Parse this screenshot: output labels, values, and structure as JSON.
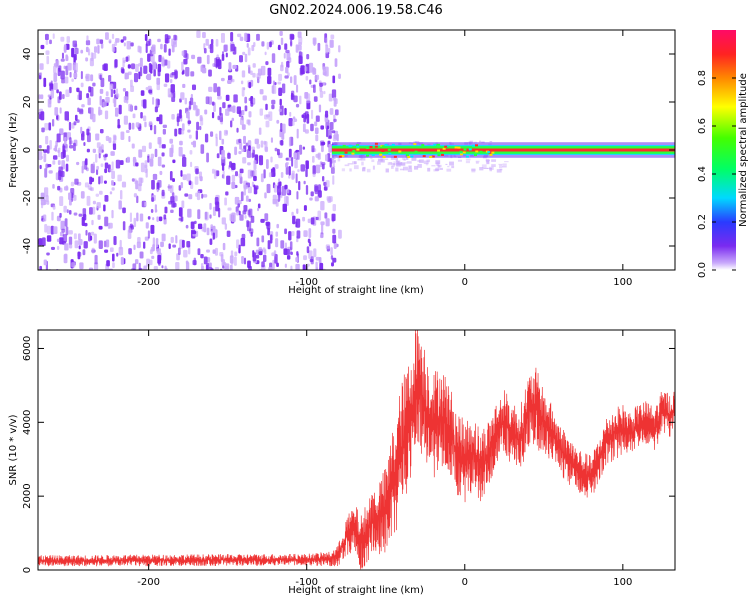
{
  "title": "GN02.2024.006.19.58.C46",
  "colors": {
    "spectrogram_noise": "#7a2bf0",
    "spectrogram_light": "#c9a8fb",
    "snr_line": "#ee3333",
    "ridge": "#ff2a2a"
  },
  "colorbar": {
    "label": "Normalized spectral amplitude",
    "ticks": [
      "0.0",
      "0.2",
      "0.4",
      "0.6",
      "0.8"
    ],
    "tick_values": [
      0.0,
      0.2,
      0.4,
      0.6,
      0.8
    ],
    "range": [
      0,
      1
    ],
    "colormap": "gist_rainbow"
  },
  "chart_data": [
    {
      "type": "heatmap",
      "title": "GN02.2024.006.19.58.C46",
      "xlabel": "Height of straight line (km)",
      "ylabel": "Frequency (Hz)",
      "xlim": [
        -270,
        133
      ],
      "ylim": [
        -50,
        50
      ],
      "xticks": [
        -200,
        -100,
        0,
        100
      ],
      "xtick_labels": [
        "-200",
        "-100",
        "0",
        "100"
      ],
      "yticks": [
        -40,
        -20,
        0,
        20,
        40
      ],
      "ytick_labels": [
        "-40",
        "-20",
        "0",
        "20",
        "40"
      ],
      "noise_region_x": [
        -270,
        -82
      ],
      "signal_band_hz": [
        -2,
        2
      ],
      "signal_start_x": -84
    },
    {
      "type": "line",
      "xlabel": "Height of straight line (km)",
      "ylabel": "SNR (10 * v/v)",
      "xlim": [
        -270,
        133
      ],
      "ylim": [
        0,
        6500
      ],
      "xticks": [
        -200,
        -100,
        0,
        100
      ],
      "xtick_labels": [
        "-200",
        "-100",
        "0",
        "100"
      ],
      "yticks": [
        0,
        2000,
        4000,
        6000
      ],
      "ytick_labels": [
        "0",
        "2000",
        "4000",
        "6000"
      ],
      "series": [
        {
          "x": [
            -270,
            -250,
            -200,
            -150,
            -100,
            -85,
            -80,
            -75,
            -70,
            -65,
            -60,
            -55,
            -50,
            -45,
            -40,
            -35,
            -30,
            -25,
            -20,
            -15,
            -10,
            -5,
            0,
            5,
            10,
            15,
            20,
            25,
            30,
            35,
            40,
            45,
            50,
            55,
            60,
            65,
            70,
            75,
            80,
            85,
            90,
            95,
            100,
            105,
            110,
            115,
            120,
            125,
            130,
            133
          ],
          "values": [
            250,
            250,
            260,
            270,
            280,
            300,
            400,
            900,
            1100,
            700,
            1200,
            1400,
            1600,
            2400,
            3300,
            3900,
            5200,
            4400,
            3900,
            4200,
            3800,
            3200,
            2900,
            3200,
            2800,
            3100,
            3700,
            4000,
            3700,
            3500,
            4300,
            4400,
            4000,
            3700,
            3300,
            3000,
            2800,
            2600,
            2500,
            3000,
            3500,
            3700,
            3800,
            3700,
            3900,
            4000,
            3800,
            4300,
            4200,
            4300
          ],
          "amplitude": [
            150,
            150,
            160,
            160,
            160,
            200,
            300,
            500,
            700,
            800,
            900,
            1000,
            1200,
            1600,
            1800,
            1900,
            1800,
            1700,
            1500,
            1400,
            1300,
            1200,
            1100,
            1100,
            1000,
            1000,
            900,
            900,
            900,
            900,
            1000,
            1100,
            900,
            800,
            700,
            700,
            600,
            600,
            600,
            600,
            700,
            700,
            700,
            600,
            600,
            600,
            600,
            600,
            600,
            600
          ]
        }
      ]
    }
  ]
}
